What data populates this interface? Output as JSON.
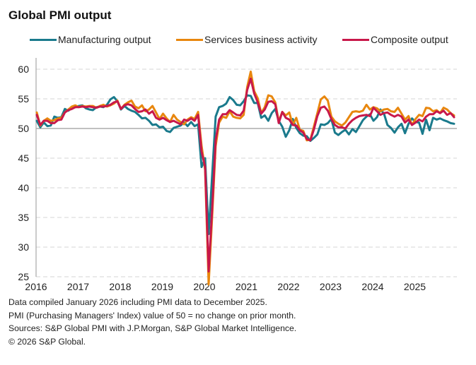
{
  "chart_data": {
    "type": "line",
    "title": "Global PMI output",
    "xlabel": "",
    "ylabel": "",
    "ylim": [
      25,
      62
    ],
    "y_ticks": [
      25,
      30,
      35,
      40,
      45,
      50,
      55,
      60
    ],
    "x_tick_labels": [
      "2016",
      "2017",
      "2018",
      "2019",
      "2020",
      "2021",
      "2022",
      "2023",
      "2024",
      "2025"
    ],
    "x_start": "2016-01",
    "x_end": "2025-12",
    "frequency": "monthly",
    "grid": "horizontal dashed",
    "reference_line": 50,
    "legend_position": "top",
    "series": [
      {
        "name": "Manufacturing output",
        "color": "#1a7a8c",
        "values": [
          51.3,
          50.2,
          51.0,
          50.4,
          50.5,
          52.0,
          51.8,
          51.9,
          53.3,
          53.0,
          53.5,
          53.6,
          53.8,
          53.9,
          53.4,
          53.2,
          53.1,
          53.6,
          53.7,
          53.6,
          54.0,
          54.9,
          55.3,
          54.6,
          53.2,
          53.8,
          53.3,
          53.0,
          52.8,
          52.3,
          51.7,
          51.8,
          51.3,
          50.6,
          50.7,
          50.2,
          50.3,
          49.6,
          49.4,
          50.1,
          50.3,
          50.5,
          51.0,
          50.4,
          51.1,
          50.4,
          50.7,
          43.5,
          45.0,
          32.2,
          42.0,
          52.0,
          53.6,
          53.8,
          54.2,
          55.3,
          54.8,
          54.0,
          53.9,
          54.6,
          55.6,
          55.5,
          54.3,
          54.3,
          51.8,
          52.2,
          51.3,
          52.6,
          53.3,
          51.3,
          50.3,
          48.6,
          49.7,
          51.6,
          50.1,
          49.2,
          48.8,
          48.7,
          47.9,
          48.4,
          49.0,
          50.7,
          50.6,
          50.9,
          51.6,
          49.3,
          48.9,
          49.4,
          49.8,
          49.0,
          49.9,
          49.4,
          50.4,
          51.4,
          52.0,
          52.4,
          51.3,
          51.9,
          53.2,
          52.5,
          50.6,
          50.1,
          49.3,
          50.2,
          50.8,
          49.2,
          50.8,
          51.7,
          51.1,
          51.0,
          49.1,
          51.5,
          49.7,
          51.8,
          51.5,
          51.7,
          51.4,
          51.2,
          50.9,
          50.8
        ]
      },
      {
        "name": "Services business activity",
        "color": "#e8870e",
        "values": [
          52.7,
          50.5,
          51.3,
          51.7,
          51.3,
          51.4,
          51.7,
          51.8,
          52.7,
          53.2,
          53.7,
          53.9,
          53.6,
          53.8,
          53.7,
          53.8,
          53.8,
          53.5,
          53.8,
          54.0,
          53.7,
          53.9,
          54.2,
          54.7,
          53.3,
          54.0,
          54.4,
          54.7,
          53.7,
          53.4,
          53.9,
          52.9,
          53.2,
          53.8,
          52.7,
          51.6,
          52.5,
          51.7,
          51.1,
          52.3,
          51.5,
          51.1,
          50.7,
          51.5,
          51.9,
          51.6,
          52.8,
          47.1,
          43.0,
          23.7,
          35.0,
          47.0,
          51.0,
          52.0,
          51.8,
          52.9,
          52.0,
          51.8,
          51.7,
          52.3,
          57.0,
          59.6,
          56.3,
          55.1,
          52.6,
          53.6,
          55.6,
          55.4,
          54.4,
          51.2,
          52.8,
          52.2,
          52.7,
          50.6,
          51.8,
          49.8,
          49.6,
          48.0,
          48.1,
          50.3,
          52.6,
          54.9,
          55.4,
          54.7,
          52.0,
          51.2,
          50.8,
          50.5,
          51.0,
          51.9,
          52.8,
          52.9,
          52.8,
          53.0,
          54.0,
          53.2,
          53.6,
          53.4,
          52.9,
          53.2,
          53.3,
          52.9,
          52.8,
          53.5,
          52.5,
          51.5,
          52.1,
          50.6,
          51.6,
          52.3,
          52.1,
          53.5,
          53.4,
          52.9,
          53.1,
          52.6,
          53.5,
          53.2,
          52.6,
          52.2
        ]
      },
      {
        "name": "Composite output",
        "color": "#c8184a",
        "values": [
          52.3,
          50.6,
          51.3,
          51.3,
          50.9,
          50.9,
          51.4,
          51.5,
          52.7,
          53.1,
          53.3,
          53.6,
          53.6,
          53.7,
          53.6,
          53.7,
          53.6,
          53.5,
          53.7,
          53.7,
          53.8,
          54.0,
          54.4,
          54.6,
          53.3,
          53.9,
          54.1,
          53.9,
          53.3,
          52.8,
          52.9,
          53.2,
          52.5,
          52.9,
          51.8,
          51.5,
          51.8,
          51.4,
          51.1,
          51.3,
          51.0,
          50.7,
          51.5,
          51.3,
          51.7,
          51.3,
          52.3,
          46.1,
          43.5,
          25.9,
          36.3,
          48.0,
          51.5,
          52.4,
          52.4,
          53.1,
          52.7,
          52.3,
          52.2,
          53.0,
          56.5,
          58.4,
          55.9,
          54.4,
          52.5,
          53.2,
          54.5,
          54.6,
          54.1,
          50.9,
          52.8,
          51.8,
          51.5,
          50.6,
          50.5,
          49.7,
          49.3,
          48.2,
          48.0,
          49.8,
          52.1,
          53.5,
          53.7,
          53.0,
          51.6,
          50.6,
          50.2,
          50.2,
          50.0,
          50.8,
          51.4,
          51.8,
          52.1,
          52.2,
          52.3,
          52.1,
          53.5,
          52.9,
          52.3,
          52.6,
          52.7,
          52.3,
          52.0,
          52.3,
          52.0,
          51.0,
          51.5,
          50.6,
          51.0,
          51.5,
          51.2,
          52.0,
          52.4,
          52.4,
          52.9,
          52.6,
          53.0,
          52.3,
          52.6,
          51.9
        ]
      }
    ]
  },
  "notes": {
    "line1": "Data compiled January 2026 including PMI data to December 2025.",
    "line2": "PMI (Purchasing Managers' Index) value of 50 = no change on prior month.",
    "line3": "Sources: S&P Global PMI with J.P.Morgan, S&P Global Market Intelligence.",
    "line4": "© 2026 S&P Global."
  }
}
